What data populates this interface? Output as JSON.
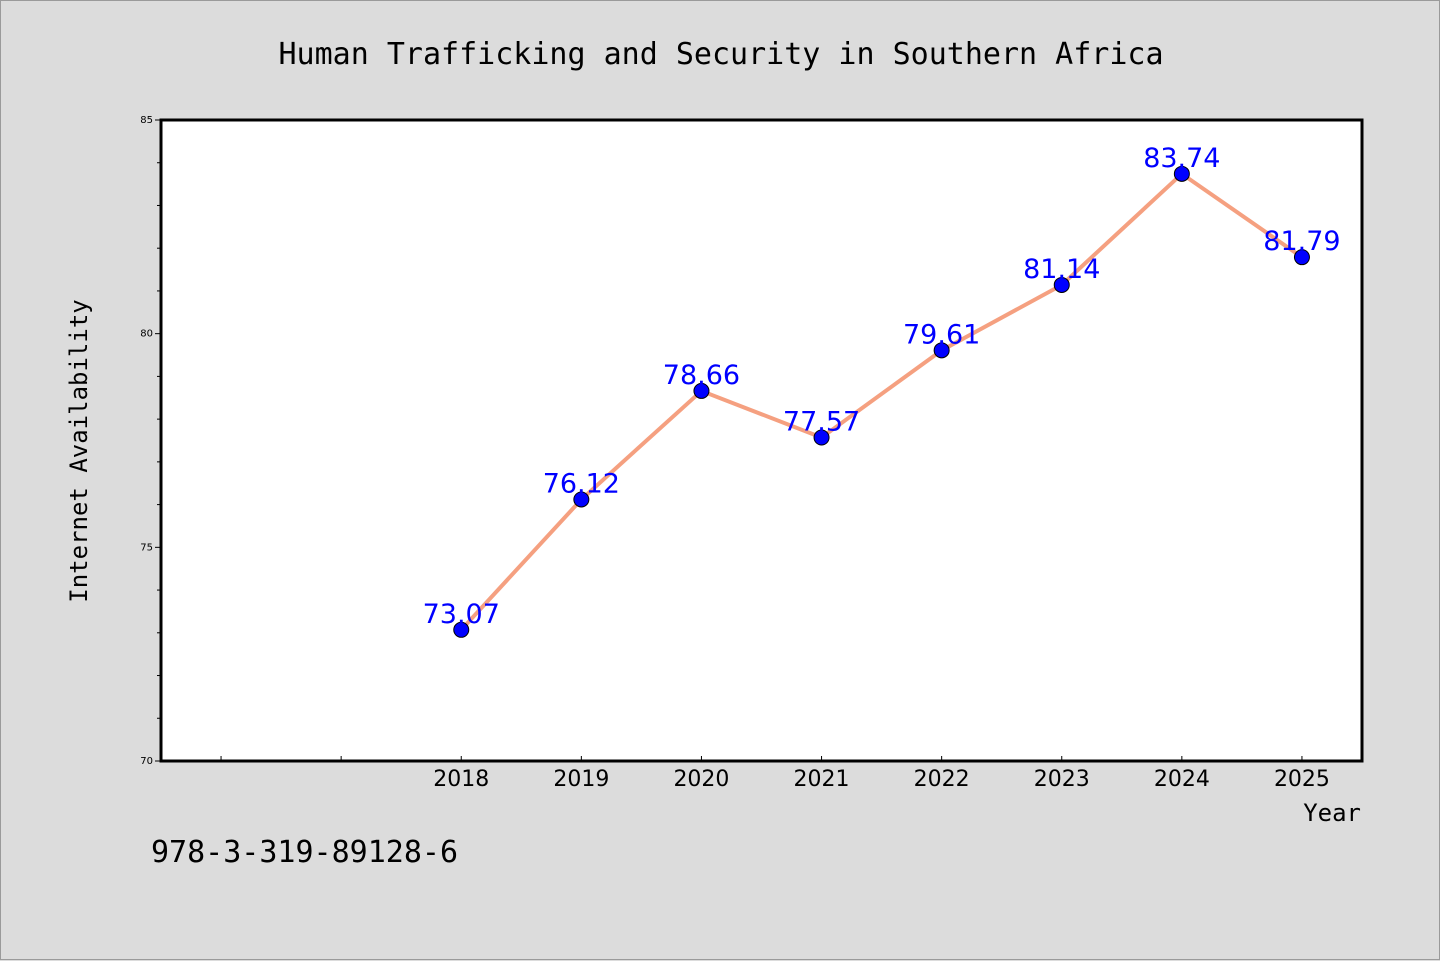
{
  "chart_data": {
    "type": "line",
    "title": "Human Trafficking and Security in Southern Africa",
    "xlabel": "Year",
    "ylabel": "Internet Availability",
    "categories": [
      "2018",
      "2019",
      "2020",
      "2021",
      "2022",
      "2023",
      "2024",
      "2025"
    ],
    "x": [
      2018,
      2019,
      2020,
      2021,
      2022,
      2023,
      2024,
      2025
    ],
    "series": [
      {
        "values": [
          73.07,
          76.12,
          78.66,
          77.57,
          79.61,
          81.14,
          83.74,
          81.79
        ],
        "data_labels": [
          "73.07",
          "76.12",
          "78.66",
          "77.57",
          "79.61",
          "81.14",
          "83.74",
          "81.79"
        ],
        "line_color": "#f5a080",
        "marker_color": "#0000ff"
      }
    ],
    "xlim": [
      2015.5,
      2025.5
    ],
    "ylim": [
      70,
      85
    ],
    "yticks": [
      70,
      75,
      80,
      85
    ],
    "ytick_labels": [
      "70",
      "75",
      "80",
      "85"
    ],
    "grid": false,
    "legend": "none",
    "label_color": "#0000ff",
    "background": "#dcdcdc",
    "plot_background": "#ffffff"
  },
  "annotation": {
    "isbn": "978-3-319-89128-6"
  }
}
